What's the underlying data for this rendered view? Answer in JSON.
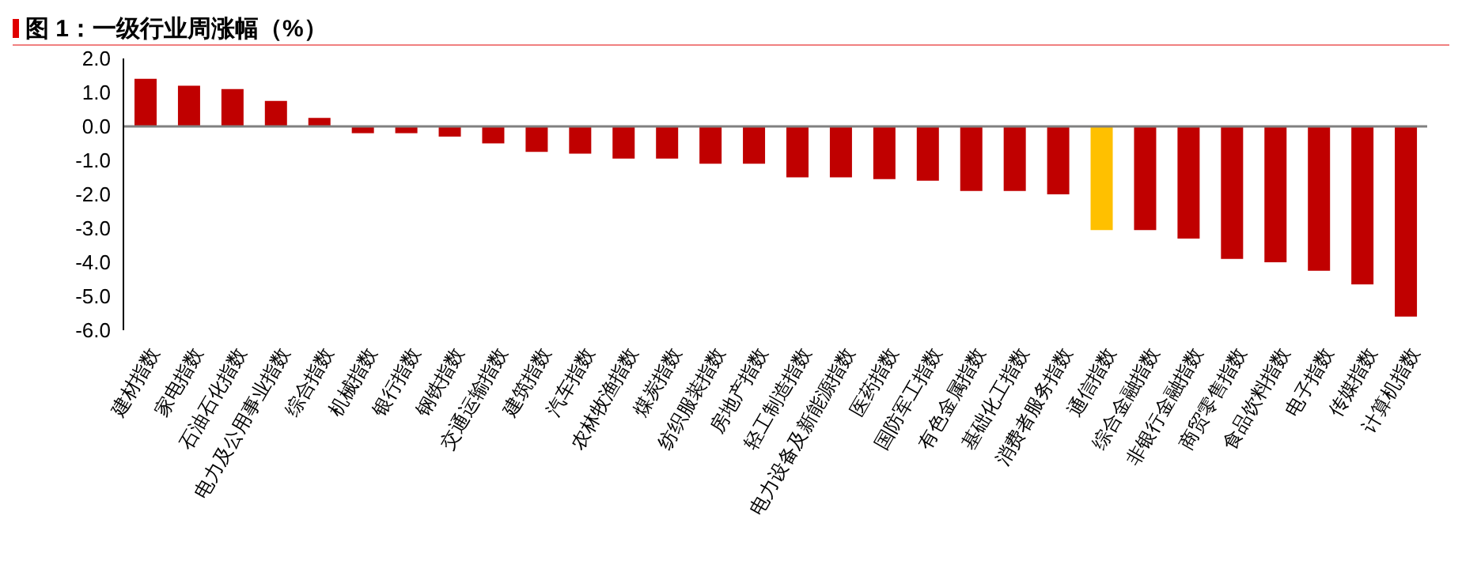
{
  "chart_data": {
    "type": "bar",
    "title": "图 1：一级行业周涨幅（%）",
    "categories": [
      "建材指数",
      "家电指数",
      "石油石化指数",
      "电力及公用事业指数",
      "综合指数",
      "机械指数",
      "银行指数",
      "钢铁指数",
      "交通运输指数",
      "建筑指数",
      "汽车指数",
      "农林牧渔指数",
      "煤炭指数",
      "纺织服装指数",
      "房地产指数",
      "轻工制造指数",
      "电力设备及新能源指数",
      "医药指数",
      "国防军工指数",
      "有色金属指数",
      "基础化工指数",
      "消费者服务指数",
      "通信指数",
      "综合金融指数",
      "非银行金融指数",
      "商贸零售指数",
      "食品饮料指数",
      "电子指数",
      "传媒指数",
      "计算机指数"
    ],
    "values": [
      1.4,
      1.2,
      1.1,
      0.75,
      0.25,
      -0.2,
      -0.2,
      -0.3,
      -0.5,
      -0.75,
      -0.8,
      -0.95,
      -0.95,
      -1.1,
      -1.1,
      -1.5,
      -1.5,
      -1.55,
      -1.6,
      -1.9,
      -1.9,
      -2.0,
      -3.05,
      -3.05,
      -3.3,
      -3.9,
      -4.0,
      -4.25,
      -4.65,
      -5.6
    ],
    "colors": [
      "#c00000",
      "#c00000",
      "#c00000",
      "#c00000",
      "#c00000",
      "#c00000",
      "#c00000",
      "#c00000",
      "#c00000",
      "#c00000",
      "#c00000",
      "#c00000",
      "#c00000",
      "#c00000",
      "#c00000",
      "#c00000",
      "#c00000",
      "#c00000",
      "#c00000",
      "#c00000",
      "#c00000",
      "#c00000",
      "#ffc000",
      "#c00000",
      "#c00000",
      "#c00000",
      "#c00000",
      "#c00000",
      "#c00000",
      "#c00000"
    ],
    "ylim": [
      -6,
      2
    ],
    "yticks": [
      {
        "value": 2,
        "label": "2.0"
      },
      {
        "value": 1,
        "label": "1.0"
      },
      {
        "value": 0,
        "label": "0.0"
      },
      {
        "value": -1,
        "label": "-1.0"
      },
      {
        "value": -2,
        "label": "-2.0"
      },
      {
        "value": -3,
        "label": "-3.0"
      },
      {
        "value": -4,
        "label": "-4.0"
      },
      {
        "value": -5,
        "label": "-5.0"
      },
      {
        "value": -6,
        "label": "-6.0"
      }
    ],
    "ref_lines": [
      {
        "axis": "y",
        "value": 0,
        "color": "#808080"
      }
    ],
    "grid": false,
    "legend": false
  }
}
